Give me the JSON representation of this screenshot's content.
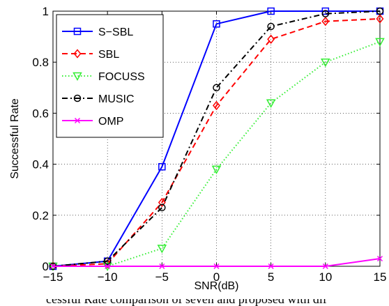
{
  "chart_data": {
    "type": "line",
    "title": "",
    "xlabel": "SNR(dB)",
    "ylabel": "Successful Rate",
    "xlim": [
      -15,
      15
    ],
    "ylim": [
      0,
      1
    ],
    "x": [
      -15,
      -10,
      -5,
      0,
      5,
      10,
      15
    ],
    "xticks": [
      "−15",
      "−10",
      "−5",
      "0",
      "5",
      "10",
      "15"
    ],
    "yticks": [
      "0",
      "0.2",
      "0.4",
      "0.6",
      "0.8",
      "1"
    ],
    "grid": true,
    "legend_position": "top-left",
    "series": [
      {
        "name": "S−SBL",
        "values": [
          0,
          0.02,
          0.39,
          0.95,
          1.0,
          1.0,
          1.0
        ],
        "color": "#0000ff",
        "dash": "solid",
        "marker": "square"
      },
      {
        "name": "SBL",
        "values": [
          0,
          0.01,
          0.25,
          0.63,
          0.89,
          0.96,
          0.97
        ],
        "color": "#ff0000",
        "dash": "dashed",
        "marker": "diamond"
      },
      {
        "name": "FOCUSS",
        "values": [
          0,
          0.0,
          0.07,
          0.38,
          0.64,
          0.8,
          0.88
        ],
        "color": "#33ee33",
        "dash": "dotted",
        "marker": "triangle-down"
      },
      {
        "name": "MUSIC",
        "values": [
          0,
          0.02,
          0.23,
          0.7,
          0.94,
          0.99,
          1.0
        ],
        "color": "#000000",
        "dash": "dashdot",
        "marker": "circle"
      },
      {
        "name": "OMP",
        "values": [
          0,
          0.0,
          0.0,
          0.0,
          0.0,
          0.0,
          0.03
        ],
        "color": "#ff00ff",
        "dash": "solid",
        "marker": "x"
      }
    ]
  },
  "caption": "cessful Rate comparison of seven and proposed with dif"
}
